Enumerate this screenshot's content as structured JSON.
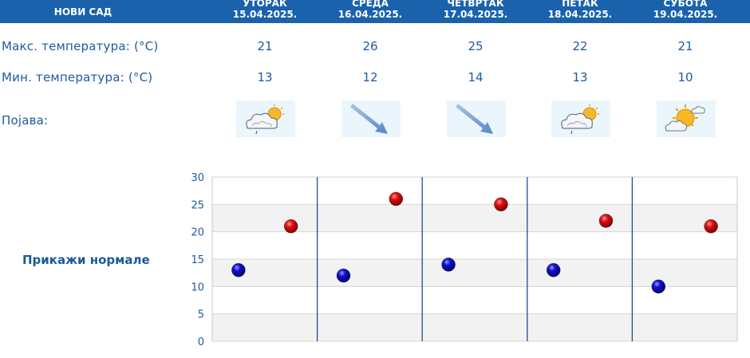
{
  "header": {
    "city": "НОВИ САД",
    "days": [
      {
        "name": "УТОРАК",
        "date": "15.04.2025."
      },
      {
        "name": "СРЕДА",
        "date": "16.04.2025."
      },
      {
        "name": "ЧЕТВРТАК",
        "date": "17.04.2025."
      },
      {
        "name": "ПЕТАК",
        "date": "18.04.2025."
      },
      {
        "name": "СУБОТА",
        "date": "19.04.2025."
      }
    ]
  },
  "rows": {
    "max_label": "Макс. температура: (°C)",
    "min_label": "Мин. температура: (°C)",
    "phenomenon_label": "Појава:"
  },
  "max_temps": [
    "21",
    "26",
    "25",
    "22",
    "21"
  ],
  "min_temps": [
    "13",
    "12",
    "14",
    "13",
    "10"
  ],
  "icons": [
    "partly-cloudy-light-rain-icon",
    "wind-arrow-icon",
    "wind-arrow-icon",
    "partly-cloudy-light-rain-icon",
    "partly-sunny-icon"
  ],
  "normals_link": "Прикажи нормале",
  "colors": {
    "header_bg": "#1a62ac",
    "text": "#1e5aa0",
    "max_marker": "#cc0000",
    "min_marker": "#0000aa",
    "day_divider": "#1a4f90"
  },
  "chart_data": {
    "type": "scatter",
    "categories": [
      "15.04.2025.",
      "16.04.2025.",
      "17.04.2025.",
      "18.04.2025.",
      "19.04.2025."
    ],
    "series": [
      {
        "values": [
          13,
          12,
          14,
          13,
          10
        ],
        "color": "#0000aa"
      },
      {
        "values": [
          21,
          26,
          25,
          22,
          21
        ],
        "color": "#cc0000"
      }
    ],
    "ylim": [
      0,
      30
    ],
    "yticks": [
      "0",
      "5",
      "10",
      "15",
      "20",
      "25",
      "30"
    ],
    "grid": true,
    "title": "",
    "xlabel": "",
    "ylabel": ""
  }
}
